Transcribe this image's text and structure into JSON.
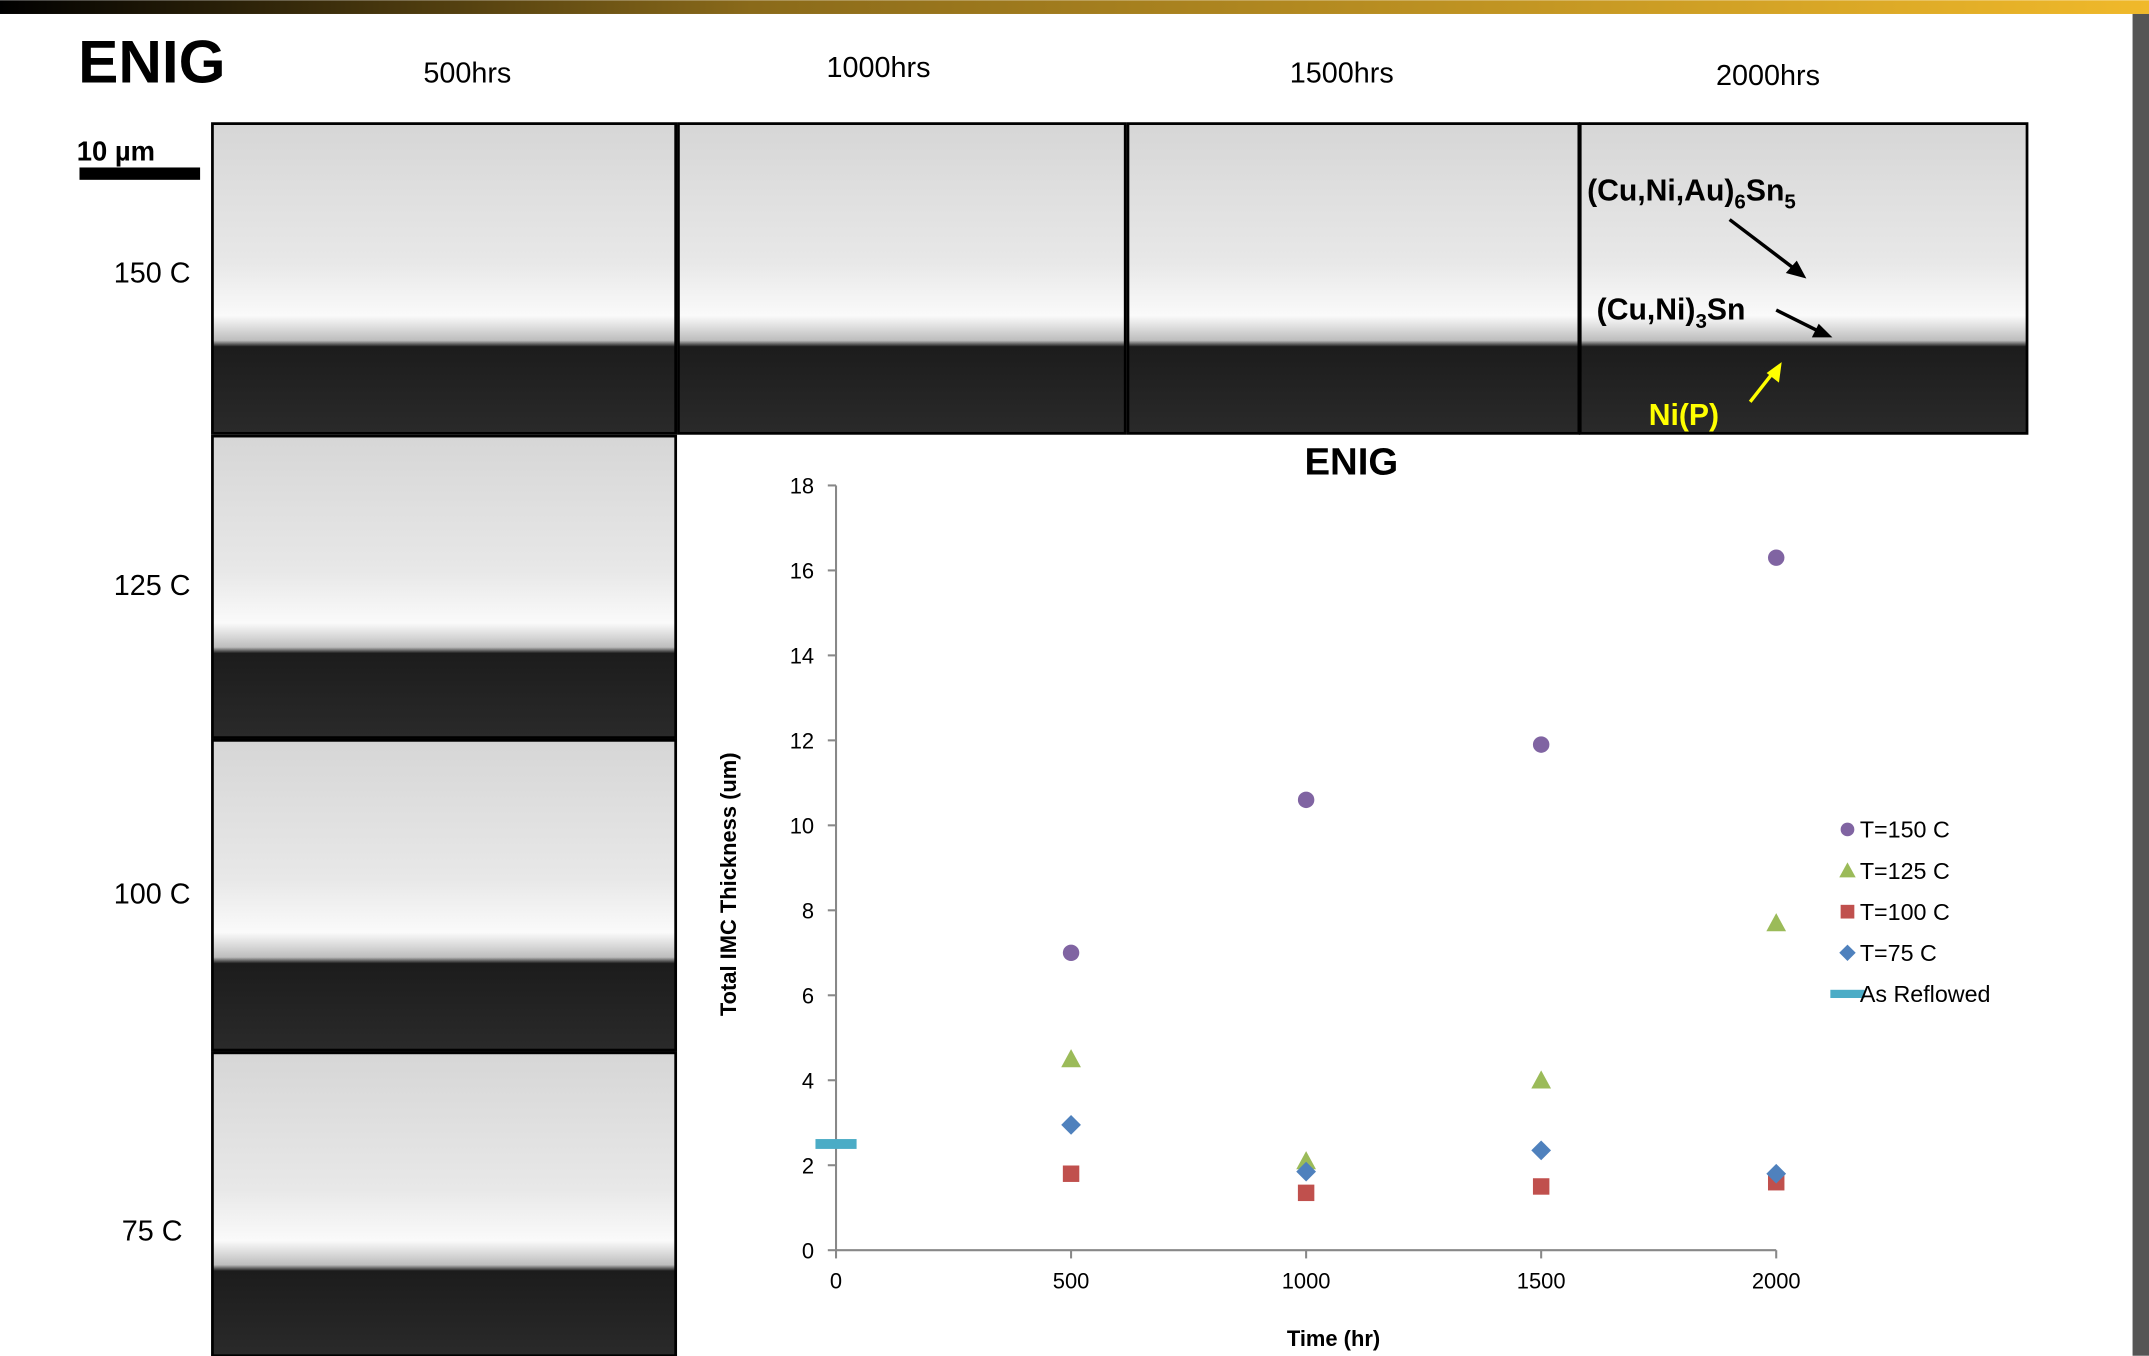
{
  "header": {
    "title": "ENIG",
    "scale_bar": "10 µm"
  },
  "columns": [
    "500hrs",
    "1000hrs",
    "1500hrs",
    "2000hrs"
  ],
  "rows": [
    "150 C",
    "125 C",
    "100 C",
    "75 C"
  ],
  "annotations": [
    {
      "parts": [
        "(Cu,Ni,Au)",
        "6",
        "Sn",
        "5"
      ],
      "color": "#000000"
    },
    {
      "parts": [
        "(Cu,Ni)",
        "3",
        "Sn"
      ],
      "color": "#000000"
    },
    {
      "parts": [
        "Ni(P)"
      ],
      "color": "#ffff00"
    }
  ],
  "chart_data": {
    "type": "scatter",
    "title": "ENIG",
    "x_label": "Time (hr)",
    "y_label": "Total IMC Thickness (um)",
    "xlim": [
      0,
      2000
    ],
    "ylim": [
      0,
      18
    ],
    "xticks": [
      0,
      500,
      1000,
      1500,
      2000
    ],
    "yticks": [
      0,
      2,
      4,
      6,
      8,
      10,
      12,
      14,
      16,
      18
    ],
    "grid": false,
    "legend": "right",
    "series": [
      {
        "name": "T=150 C",
        "color": "#8064a2",
        "marker": "circle",
        "x": [
          500,
          1000,
          1500,
          2000
        ],
        "values": [
          7.0,
          10.6,
          11.9,
          16.3
        ]
      },
      {
        "name": "T=125 C",
        "color": "#9bbb59",
        "marker": "triangle",
        "x": [
          500,
          1000,
          1500,
          2000
        ],
        "values": [
          4.5,
          2.1,
          4.0,
          7.7
        ]
      },
      {
        "name": "T=100 C",
        "color": "#c0504d",
        "marker": "square",
        "x": [
          500,
          1000,
          1500,
          2000
        ],
        "values": [
          1.8,
          1.35,
          1.5,
          1.6
        ]
      },
      {
        "name": "T=75 C",
        "color": "#4f81bd",
        "marker": "diamond",
        "x": [
          500,
          1000,
          1500,
          2000
        ],
        "values": [
          2.95,
          1.85,
          2.35,
          1.8
        ]
      },
      {
        "name": "As Reflowed",
        "color": "#4bacc6",
        "marker": "dash",
        "x": [
          0
        ],
        "values": [
          2.5
        ]
      }
    ]
  }
}
